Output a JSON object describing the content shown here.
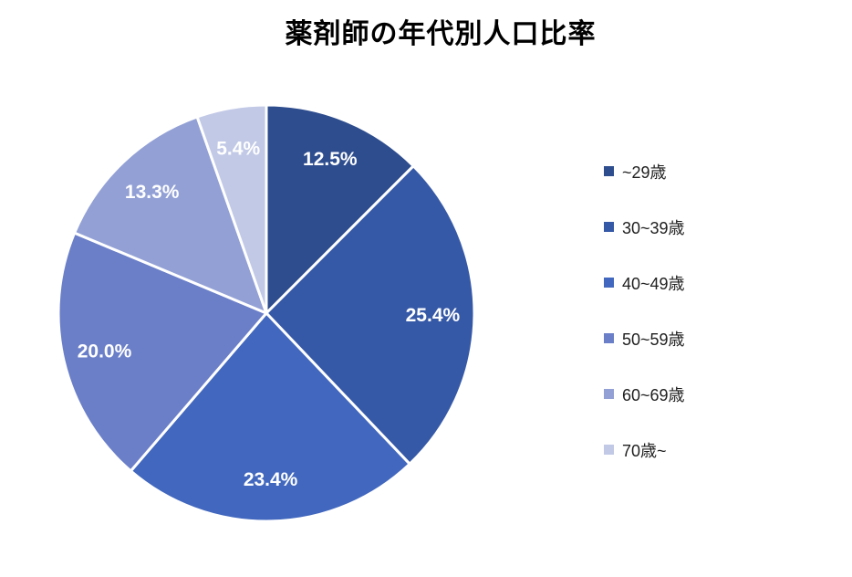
{
  "chart_data": {
    "type": "pie",
    "title": "薬剤師の年代別人口比率",
    "categories": [
      "~29歳",
      "30~39歳",
      "40~49歳",
      "50~59歳",
      "60~69歳",
      "70歳~"
    ],
    "values": [
      12.5,
      25.4,
      23.4,
      20.0,
      13.3,
      5.4
    ],
    "labels": [
      "12.5%",
      "25.4%",
      "23.4%",
      "20.0%",
      "13.3%",
      "5.4%"
    ],
    "colors": [
      "#2E4D8E",
      "#3659A7",
      "#4167BE",
      "#6B7FC9",
      "#92A0D5",
      "#C1C9E6"
    ],
    "start_angle_deg": 0,
    "direction": "clockwise",
    "legend_position": "right",
    "slice_label_color": "#FFFFFF",
    "slice_border_color": "#FFFFFF",
    "background": "#FFFFFF",
    "title_color": "#000000"
  }
}
